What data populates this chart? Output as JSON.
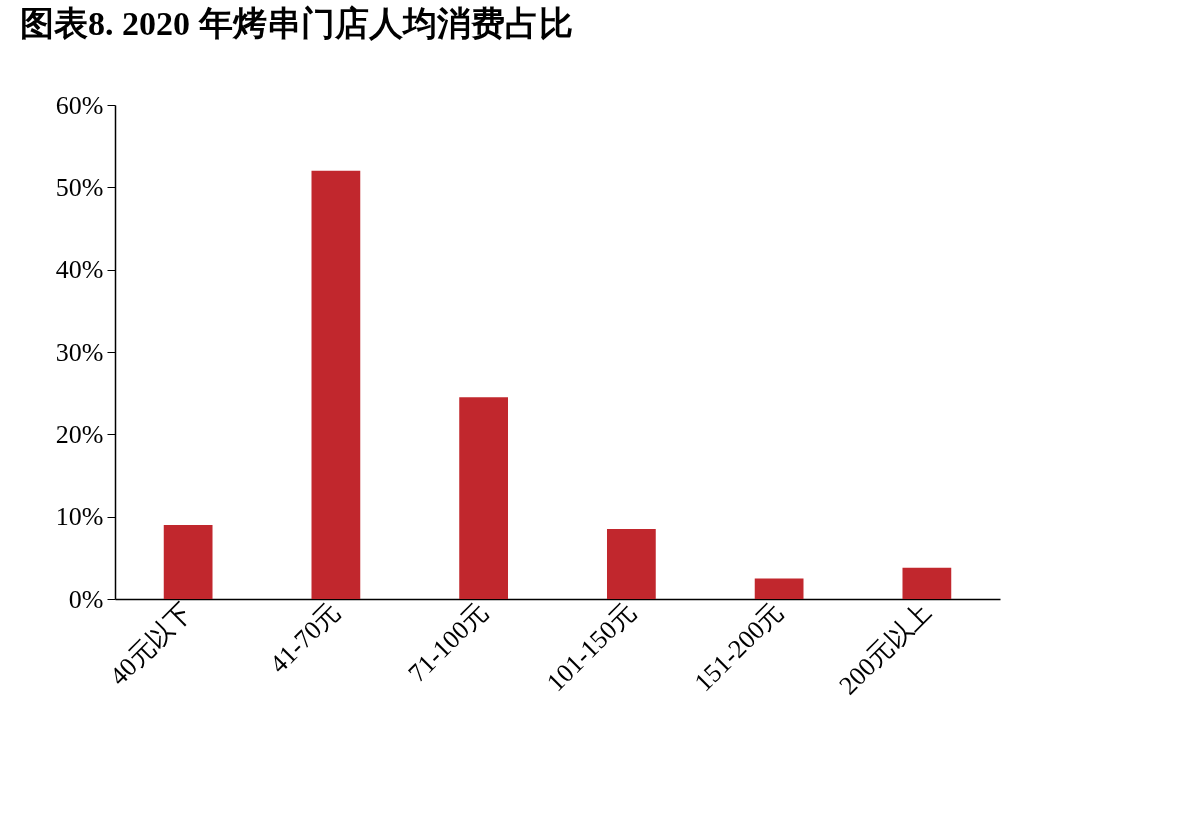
{
  "chart_data": {
    "type": "bar",
    "title": "图表8.   2020 年烤串门店人均消费占比",
    "categories": [
      "40元以下",
      "41-70元",
      "71-100元",
      "101-150元",
      "151-200元",
      "200元以上"
    ],
    "values": [
      9,
      52,
      24.5,
      8.5,
      2.5,
      3.8
    ],
    "color": "#c1272d",
    "ylim": [
      0,
      60
    ],
    "yticks": [
      {
        "value": 0,
        "label": "0%"
      },
      {
        "value": 10,
        "label": "10%"
      },
      {
        "value": 20,
        "label": "20%"
      },
      {
        "value": 30,
        "label": "30%"
      },
      {
        "value": 40,
        "label": "40%"
      },
      {
        "value": 50,
        "label": "50%"
      },
      {
        "value": 60,
        "label": "60%"
      }
    ],
    "grid": false
  }
}
